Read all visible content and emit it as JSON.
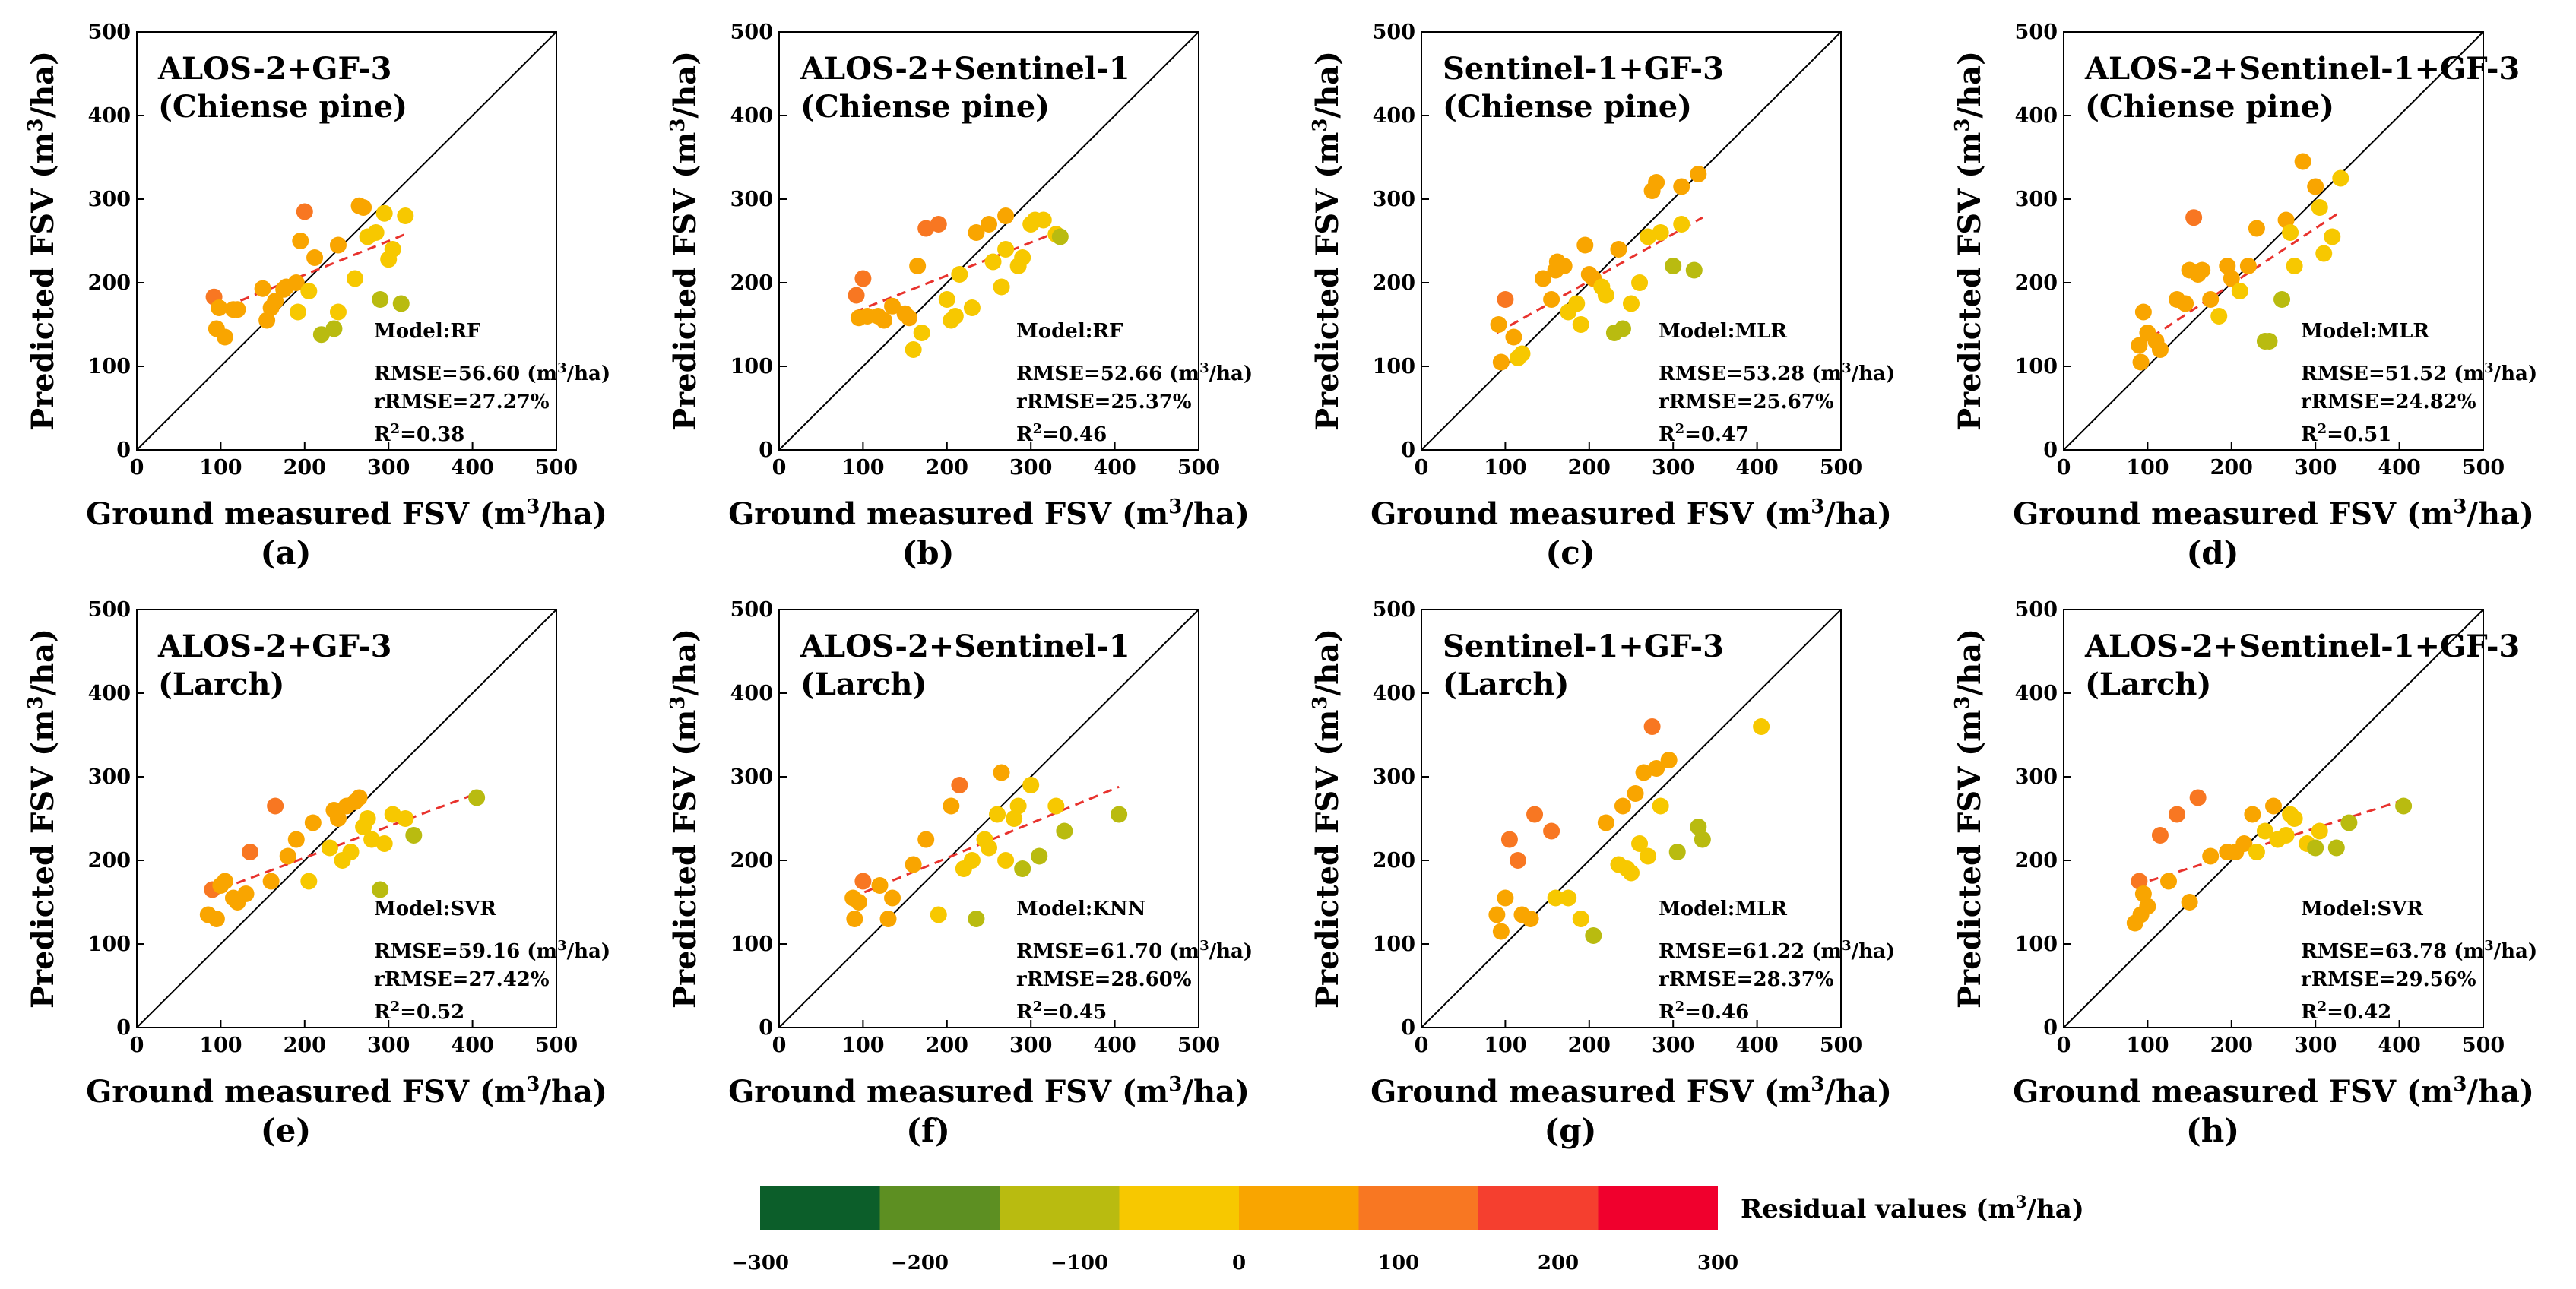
{
  "figure": {
    "x_axis_label": "Ground measured FSV (m3/ha)",
    "y_axis_label": "Predicted FSV (m3/ha)",
    "x_ticks": [
      "0",
      "100",
      "200",
      "300",
      "400",
      "500"
    ],
    "y_ticks": [
      "0",
      "100",
      "200",
      "300",
      "400",
      "500"
    ],
    "colorbar": {
      "label": "Residual values (m3/ha)",
      "ticks": [
        "-300",
        "-200",
        "-100",
        "0",
        "100",
        "200",
        "300"
      ],
      "colors": [
        "#0c5e2a",
        "#5d8f22",
        "#b9bb10",
        "#f7c800",
        "#f9a500",
        "#f87722",
        "#f53f2f",
        "#f0002d"
      ]
    }
  },
  "chart_data": [
    {
      "type": "scatter",
      "label": "(a)",
      "title_line1": "ALOS-2+GF-3",
      "title_line2": "(Chiense pine)",
      "model": "Model:RF",
      "rmse": "RMSE=56.60",
      "rrmse": "rRMSE=27.27%",
      "r2": "=0.38",
      "xlim": [
        0,
        500
      ],
      "ylim": [
        0,
        500
      ],
      "trend": [
        [
          90,
          165
        ],
        [
          320,
          258
        ]
      ],
      "points": [
        [
          92,
          183
        ],
        [
          95,
          145
        ],
        [
          98,
          170
        ],
        [
          105,
          135
        ],
        [
          115,
          168
        ],
        [
          120,
          168
        ],
        [
          150,
          193
        ],
        [
          155,
          155
        ],
        [
          160,
          170
        ],
        [
          165,
          178
        ],
        [
          175,
          192
        ],
        [
          178,
          195
        ],
        [
          190,
          200
        ],
        [
          192,
          165
        ],
        [
          195,
          250
        ],
        [
          200,
          285
        ],
        [
          205,
          190
        ],
        [
          212,
          230
        ],
        [
          220,
          138
        ],
        [
          235,
          145
        ],
        [
          240,
          165
        ],
        [
          240,
          245
        ],
        [
          260,
          205
        ],
        [
          265,
          292
        ],
        [
          270,
          290
        ],
        [
          275,
          255
        ],
        [
          285,
          260
        ],
        [
          290,
          180
        ],
        [
          295,
          283
        ],
        [
          300,
          228
        ],
        [
          305,
          240
        ],
        [
          320,
          280
        ],
        [
          315,
          175
        ]
      ]
    },
    {
      "type": "scatter",
      "label": "(b)",
      "title_line1": "ALOS-2+Sentinel-1",
      "title_line2": "(Chiense pine)",
      "model": "Model:RF",
      "rmse": "RMSE=52.66",
      "rrmse": "rRMSE=25.37%",
      "r2": "=0.46",
      "xlim": [
        0,
        500
      ],
      "ylim": [
        0,
        500
      ],
      "trend": [
        [
          90,
          165
        ],
        [
          335,
          262
        ]
      ],
      "points": [
        [
          92,
          185
        ],
        [
          95,
          158
        ],
        [
          100,
          205
        ],
        [
          105,
          160
        ],
        [
          118,
          160
        ],
        [
          125,
          155
        ],
        [
          135,
          172
        ],
        [
          150,
          163
        ],
        [
          155,
          158
        ],
        [
          160,
          120
        ],
        [
          170,
          140
        ],
        [
          165,
          220
        ],
        [
          175,
          265
        ],
        [
          190,
          270
        ],
        [
          200,
          180
        ],
        [
          205,
          155
        ],
        [
          210,
          160
        ],
        [
          215,
          210
        ],
        [
          230,
          170
        ],
        [
          235,
          260
        ],
        [
          250,
          270
        ],
        [
          255,
          225
        ],
        [
          265,
          195
        ],
        [
          270,
          280
        ],
        [
          270,
          240
        ],
        [
          285,
          220
        ],
        [
          290,
          230
        ],
        [
          300,
          270
        ],
        [
          305,
          275
        ],
        [
          315,
          275
        ],
        [
          330,
          258
        ],
        [
          335,
          255
        ]
      ]
    },
    {
      "type": "scatter",
      "label": "(c)",
      "title_line1": "Sentinel-1+GF-3",
      "title_line2": "(Chiense pine)",
      "model": "Model:MLR",
      "rmse": "RMSE=53.28",
      "rrmse": "rRMSE=25.67%",
      "r2": "=0.47",
      "xlim": [
        0,
        500
      ],
      "ylim": [
        0,
        500
      ],
      "trend": [
        [
          90,
          140
        ],
        [
          335,
          278
        ]
      ],
      "points": [
        [
          92,
          150
        ],
        [
          95,
          105
        ],
        [
          100,
          180
        ],
        [
          110,
          135
        ],
        [
          115,
          110
        ],
        [
          120,
          115
        ],
        [
          145,
          205
        ],
        [
          155,
          180
        ],
        [
          160,
          215
        ],
        [
          162,
          225
        ],
        [
          170,
          220
        ],
        [
          175,
          165
        ],
        [
          185,
          175
        ],
        [
          190,
          150
        ],
        [
          195,
          245
        ],
        [
          200,
          210
        ],
        [
          205,
          205
        ],
        [
          215,
          195
        ],
        [
          220,
          185
        ],
        [
          230,
          140
        ],
        [
          235,
          240
        ],
        [
          240,
          145
        ],
        [
          250,
          175
        ],
        [
          260,
          200
        ],
        [
          270,
          255
        ],
        [
          275,
          310
        ],
        [
          280,
          320
        ],
        [
          285,
          260
        ],
        [
          300,
          220
        ],
        [
          310,
          270
        ],
        [
          310,
          315
        ],
        [
          325,
          215
        ],
        [
          330,
          330
        ]
      ]
    },
    {
      "type": "scatter",
      "label": "(d)",
      "title_line1": "ALOS-2+Sentinel-1+GF-3",
      "title_line2": "(Chiense pine)",
      "model": "Model:MLR",
      "rmse": "RMSE=51.52",
      "rrmse": "rRMSE=24.82%",
      "r2": "=0.51",
      "xlim": [
        0,
        500
      ],
      "ylim": [
        0,
        500
      ],
      "trend": [
        [
          90,
          125
        ],
        [
          330,
          285
        ]
      ],
      "points": [
        [
          90,
          125
        ],
        [
          92,
          105
        ],
        [
          95,
          165
        ],
        [
          100,
          140
        ],
        [
          110,
          130
        ],
        [
          115,
          120
        ],
        [
          135,
          180
        ],
        [
          145,
          175
        ],
        [
          150,
          215
        ],
        [
          155,
          278
        ],
        [
          160,
          210
        ],
        [
          165,
          215
        ],
        [
          175,
          180
        ],
        [
          185,
          160
        ],
        [
          195,
          220
        ],
        [
          200,
          205
        ],
        [
          210,
          190
        ],
        [
          220,
          220
        ],
        [
          230,
          265
        ],
        [
          240,
          130
        ],
        [
          245,
          130
        ],
        [
          260,
          180
        ],
        [
          265,
          275
        ],
        [
          270,
          260
        ],
        [
          275,
          220
        ],
        [
          285,
          345
        ],
        [
          300,
          315
        ],
        [
          305,
          290
        ],
        [
          310,
          235
        ],
        [
          320,
          255
        ],
        [
          330,
          325
        ]
      ]
    },
    {
      "type": "scatter",
      "label": "(e)",
      "title_line1": "ALOS-2+GF-3",
      "title_line2": "(Larch)",
      "model": "Model:SVR",
      "rmse": "RMSE=59.16",
      "rrmse": "rRMSE=27.42%",
      "r2": "=0.52",
      "xlim": [
        0,
        500
      ],
      "ylim": [
        0,
        500
      ],
      "trend": [
        [
          85,
          160
        ],
        [
          405,
          280
        ]
      ],
      "points": [
        [
          85,
          135
        ],
        [
          90,
          165
        ],
        [
          95,
          130
        ],
        [
          100,
          170
        ],
        [
          105,
          175
        ],
        [
          115,
          155
        ],
        [
          120,
          150
        ],
        [
          130,
          160
        ],
        [
          135,
          210
        ],
        [
          160,
          175
        ],
        [
          165,
          265
        ],
        [
          180,
          205
        ],
        [
          190,
          225
        ],
        [
          205,
          175
        ],
        [
          210,
          245
        ],
        [
          230,
          215
        ],
        [
          235,
          260
        ],
        [
          240,
          250
        ],
        [
          245,
          200
        ],
        [
          250,
          265
        ],
        [
          255,
          210
        ],
        [
          260,
          270
        ],
        [
          265,
          275
        ],
        [
          270,
          240
        ],
        [
          275,
          250
        ],
        [
          280,
          225
        ],
        [
          290,
          165
        ],
        [
          295,
          220
        ],
        [
          305,
          255
        ],
        [
          320,
          250
        ],
        [
          330,
          230
        ],
        [
          405,
          275
        ]
      ]
    },
    {
      "type": "scatter",
      "label": "(f)",
      "title_line1": "ALOS-2+Sentinel-1",
      "title_line2": "(Larch)",
      "model": "Model:KNN",
      "rmse": "RMSE=61.70",
      "rrmse": "rRMSE=28.60%",
      "r2": "=0.45",
      "xlim": [
        0,
        500
      ],
      "ylim": [
        0,
        500
      ],
      "trend": [
        [
          85,
          155
        ],
        [
          405,
          288
        ]
      ],
      "points": [
        [
          88,
          155
        ],
        [
          90,
          130
        ],
        [
          95,
          150
        ],
        [
          100,
          175
        ],
        [
          120,
          170
        ],
        [
          130,
          130
        ],
        [
          135,
          155
        ],
        [
          160,
          195
        ],
        [
          175,
          225
        ],
        [
          190,
          135
        ],
        [
          205,
          265
        ],
        [
          215,
          290
        ],
        [
          220,
          190
        ],
        [
          230,
          200
        ],
        [
          235,
          130
        ],
        [
          245,
          225
        ],
        [
          250,
          215
        ],
        [
          260,
          255
        ],
        [
          265,
          305
        ],
        [
          270,
          200
        ],
        [
          280,
          250
        ],
        [
          285,
          265
        ],
        [
          290,
          190
        ],
        [
          300,
          290
        ],
        [
          310,
          205
        ],
        [
          330,
          265
        ],
        [
          340,
          235
        ],
        [
          405,
          255
        ]
      ]
    },
    {
      "type": "scatter",
      "label": "(g)",
      "title_line1": "Sentinel-1+GF-3",
      "title_line2": "(Larch)",
      "model": "Model:MLR",
      "rmse": "RMSE=61.22",
      "rrmse": "rRMSE=28.37%",
      "r2": "=0.46",
      "xlim": [
        0,
        500
      ],
      "ylim": [
        0,
        500
      ],
      "trend": [],
      "points": [
        [
          90,
          135
        ],
        [
          95,
          115
        ],
        [
          100,
          155
        ],
        [
          105,
          225
        ],
        [
          115,
          200
        ],
        [
          120,
          135
        ],
        [
          130,
          130
        ],
        [
          135,
          255
        ],
        [
          155,
          235
        ],
        [
          160,
          155
        ],
        [
          175,
          155
        ],
        [
          190,
          130
        ],
        [
          205,
          110
        ],
        [
          220,
          245
        ],
        [
          235,
          195
        ],
        [
          240,
          265
        ],
        [
          245,
          190
        ],
        [
          250,
          185
        ],
        [
          255,
          280
        ],
        [
          260,
          220
        ],
        [
          265,
          305
        ],
        [
          270,
          205
        ],
        [
          275,
          360
        ],
        [
          280,
          310
        ],
        [
          285,
          265
        ],
        [
          295,
          320
        ],
        [
          305,
          210
        ],
        [
          330,
          240
        ],
        [
          335,
          225
        ],
        [
          405,
          360
        ]
      ]
    },
    {
      "type": "scatter",
      "label": "(h)",
      "title_line1": "ALOS-2+Sentinel-1+GF-3",
      "title_line2": "(Larch)",
      "model": "Model:SVR",
      "rmse": "RMSE=63.78",
      "rrmse": "rRMSE=29.56%",
      "r2": "=0.42",
      "xlim": [
        0,
        500
      ],
      "ylim": [
        0,
        500
      ],
      "trend": [
        [
          85,
          170
        ],
        [
          405,
          272
        ]
      ],
      "points": [
        [
          85,
          125
        ],
        [
          90,
          175
        ],
        [
          92,
          135
        ],
        [
          95,
          160
        ],
        [
          100,
          145
        ],
        [
          115,
          230
        ],
        [
          125,
          175
        ],
        [
          135,
          255
        ],
        [
          150,
          150
        ],
        [
          160,
          275
        ],
        [
          175,
          205
        ],
        [
          195,
          210
        ],
        [
          205,
          210
        ],
        [
          215,
          220
        ],
        [
          225,
          255
        ],
        [
          230,
          210
        ],
        [
          240,
          235
        ],
        [
          250,
          265
        ],
        [
          255,
          225
        ],
        [
          265,
          230
        ],
        [
          270,
          255
        ],
        [
          275,
          250
        ],
        [
          290,
          220
        ],
        [
          300,
          215
        ],
        [
          305,
          235
        ],
        [
          325,
          215
        ],
        [
          340,
          245
        ],
        [
          405,
          265
        ]
      ]
    }
  ]
}
